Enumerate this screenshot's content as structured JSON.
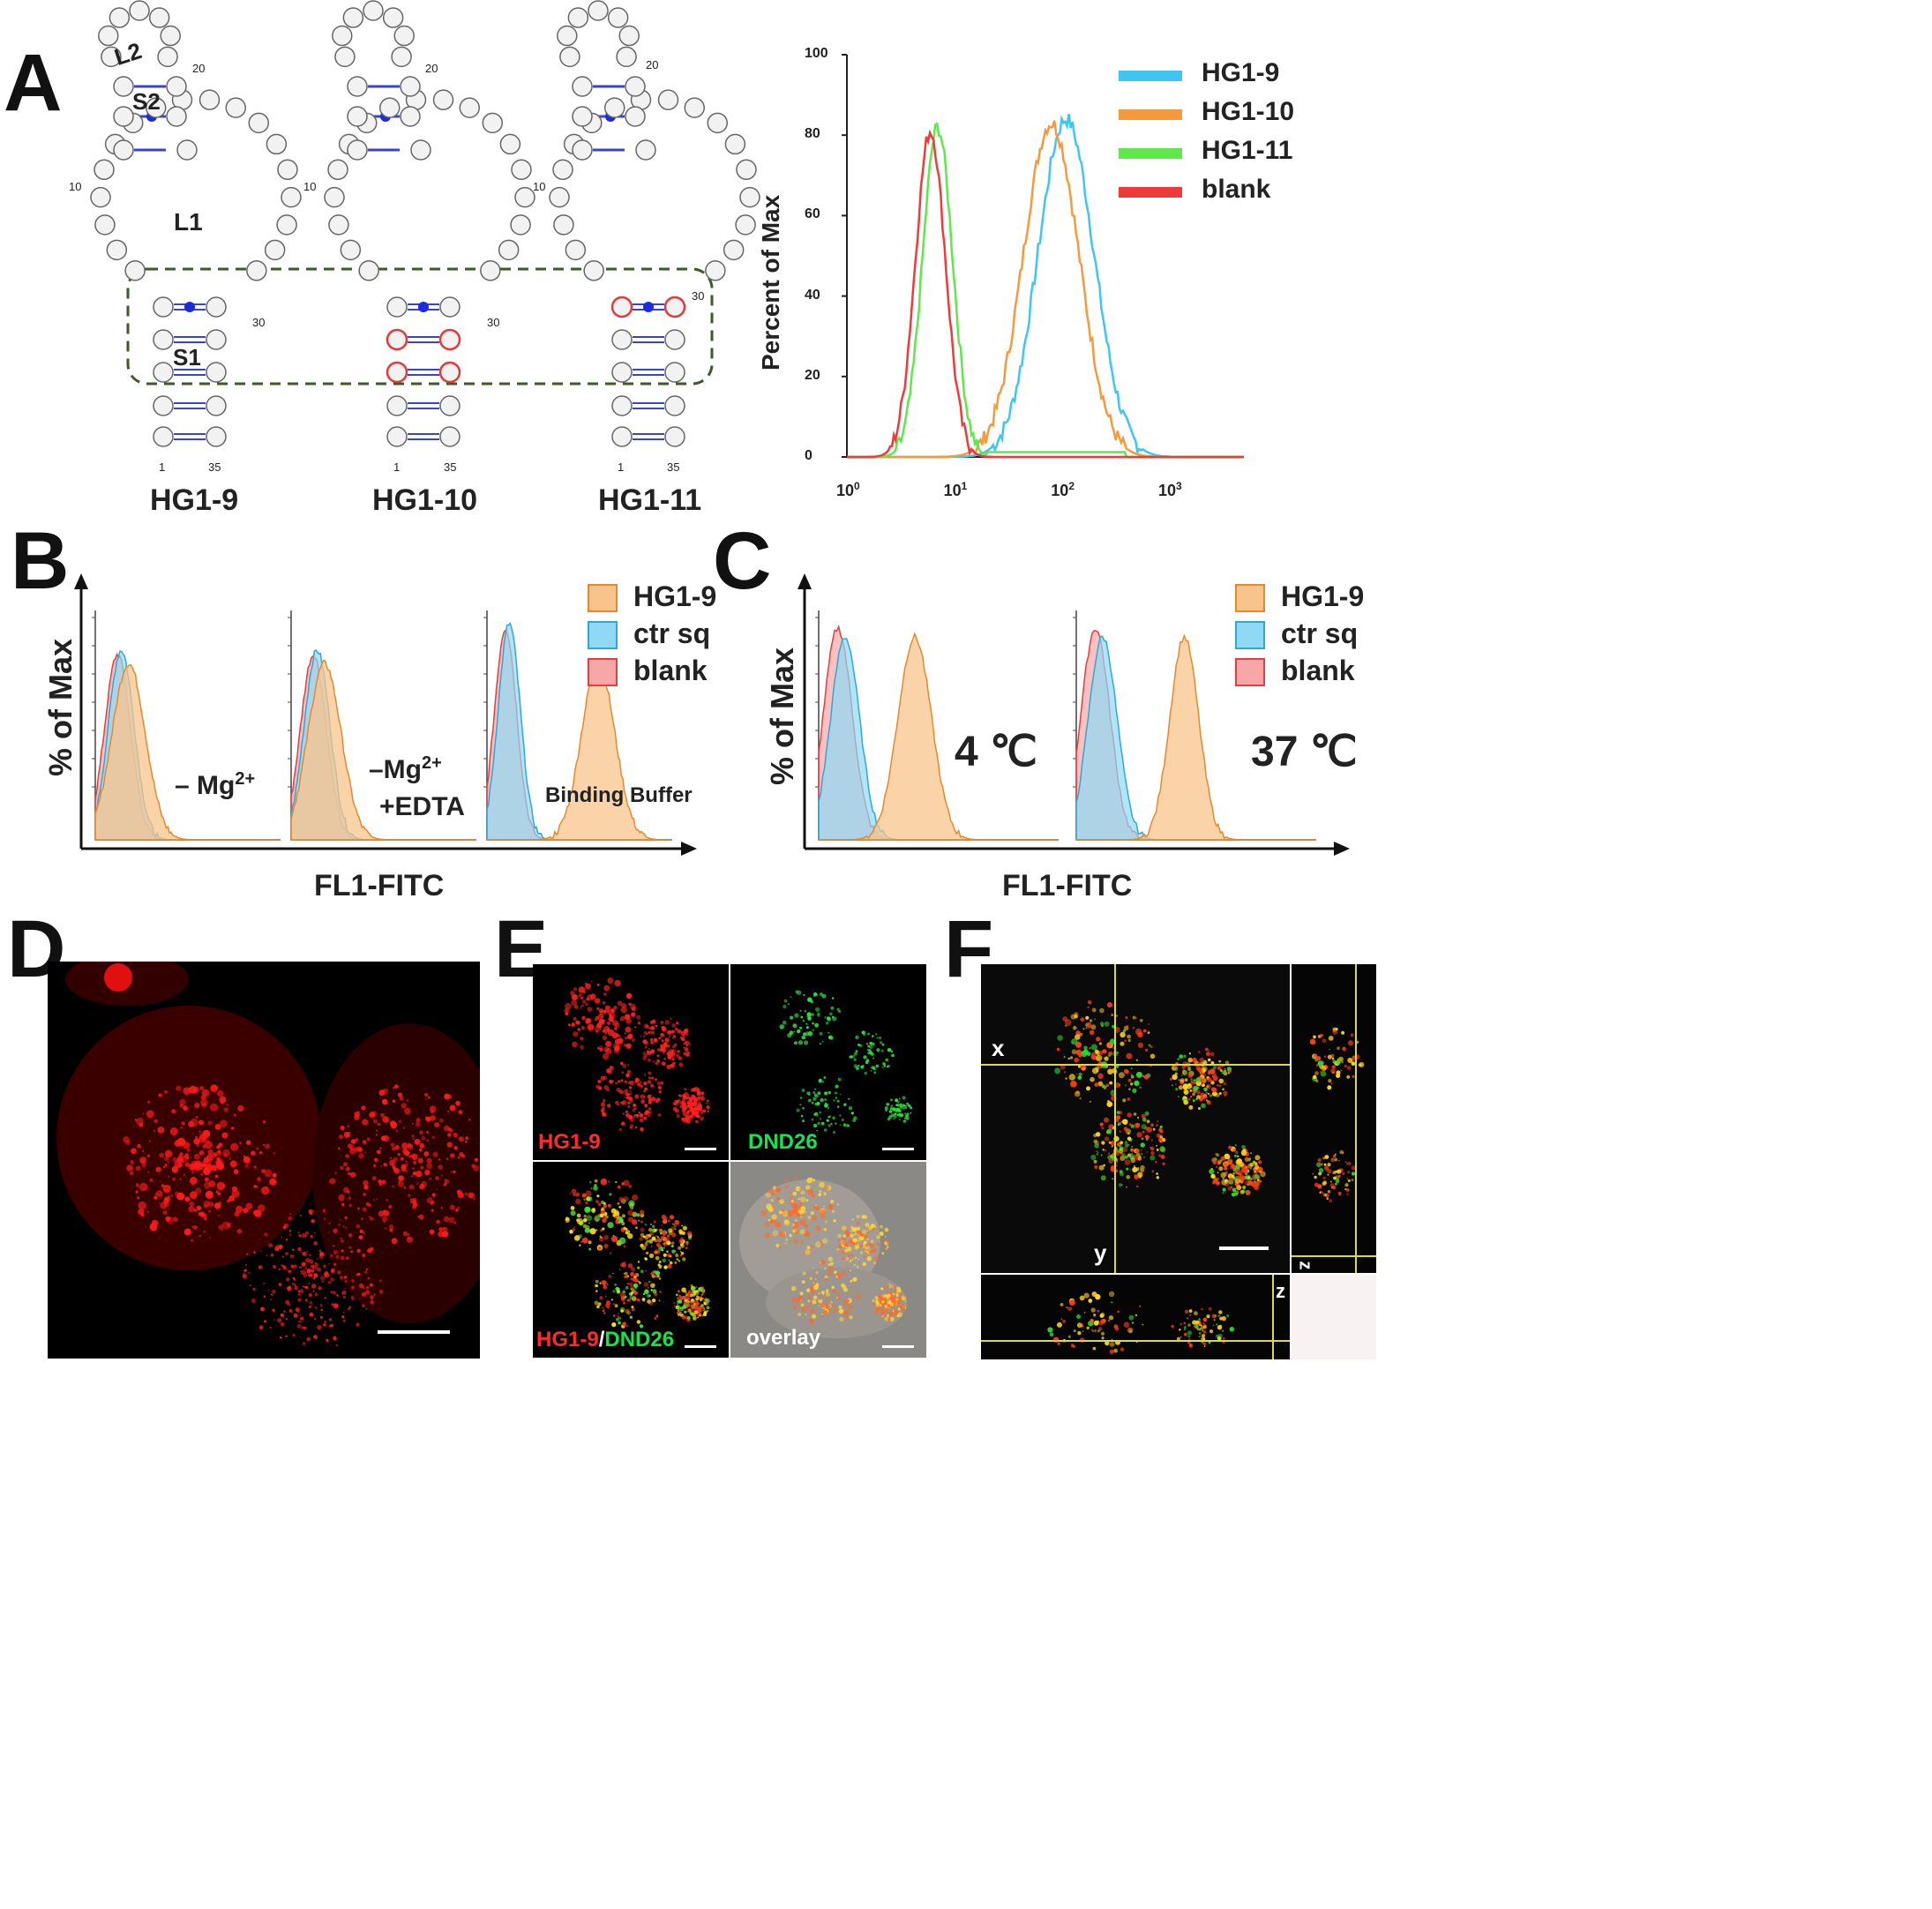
{
  "panels": {
    "A": "A",
    "B": "B",
    "C": "C",
    "D": "D",
    "E": "E",
    "F": "F"
  },
  "structures": [
    {
      "name": "HG1-9",
      "labels": {
        "loop2": "L2",
        "stem2": "S2",
        "loop1": "L1",
        "stem1": "S1"
      },
      "pos": {
        "n10": "10",
        "n20": "20",
        "n30": "30",
        "n1": "1",
        "n35": "35"
      }
    },
    {
      "name": "HG1-10",
      "pos": {
        "n10": "10",
        "n20": "20",
        "n30": "30",
        "n1": "1",
        "n35": "35"
      }
    },
    {
      "name": "HG1-11",
      "pos": {
        "n10": "10",
        "n20": "20",
        "n30": "30",
        "n1": "1",
        "n35": "35"
      }
    }
  ],
  "panelA_hist": {
    "ylabel": "Percent of Max",
    "yticks": [
      "0",
      "20",
      "40",
      "60",
      "80",
      "100"
    ],
    "xticks": [
      {
        "base": "10",
        "exp": "0"
      },
      {
        "base": "10",
        "exp": "1"
      },
      {
        "base": "10",
        "exp": "2"
      },
      {
        "base": "10",
        "exp": "3"
      }
    ],
    "legend": [
      {
        "name": "HG1-9",
        "color": "#3ec6f0"
      },
      {
        "name": "HG1-10",
        "color": "#f59a3c"
      },
      {
        "name": "HG1-11",
        "color": "#5ee84a"
      },
      {
        "name": "blank",
        "color": "#f03a3a"
      }
    ]
  },
  "panelB": {
    "ylabel": "% of Max",
    "xlabel": "FL1-FITC",
    "legend": [
      {
        "name": "HG1-9",
        "color": "#f9c48c"
      },
      {
        "name": "ctr sq",
        "color": "#8fd9f5"
      },
      {
        "name": "blank",
        "color": "#f7a7a7"
      }
    ],
    "conditions": [
      {
        "text": "– Mg",
        "sup": "2+",
        "line2": ""
      },
      {
        "text": "–Mg",
        "sup": "2+",
        "line2": "+EDTA"
      },
      {
        "text": "Binding Buffer",
        "sup": "",
        "line2": ""
      }
    ]
  },
  "panelC": {
    "ylabel": "% of Max",
    "xlabel": "FL1-FITC",
    "legend": [
      {
        "name": "HG1-9",
        "color": "#f9c48c"
      },
      {
        "name": "ctr sq",
        "color": "#8fd9f5"
      },
      {
        "name": "blank",
        "color": "#f7a7a7"
      }
    ],
    "conditions": [
      "4 ℃",
      "37 ℃"
    ]
  },
  "panelE": {
    "tl": "HG1-9",
    "tr": "DND26",
    "bl_a": "HG1-9",
    "bl_sep": "/",
    "bl_b": "DND26",
    "br": "overlay"
  },
  "panelF": {
    "x": "x",
    "y": "y",
    "z": "z",
    "zr": "z"
  },
  "chart_data": {
    "type": "line",
    "ylabel": "Percent of Max",
    "ylim": [
      0,
      100
    ],
    "xscale": "log",
    "xlim": [
      1,
      5000
    ],
    "series": [
      {
        "name": "HG1-9",
        "mode_x": 110,
        "peak": 84
      },
      {
        "name": "HG1-10",
        "mode_x": 80,
        "peak": 83
      },
      {
        "name": "HG1-11",
        "mode_x": 7,
        "peak": 82
      },
      {
        "name": "blank",
        "mode_x": 6,
        "peak": 81
      }
    ]
  }
}
